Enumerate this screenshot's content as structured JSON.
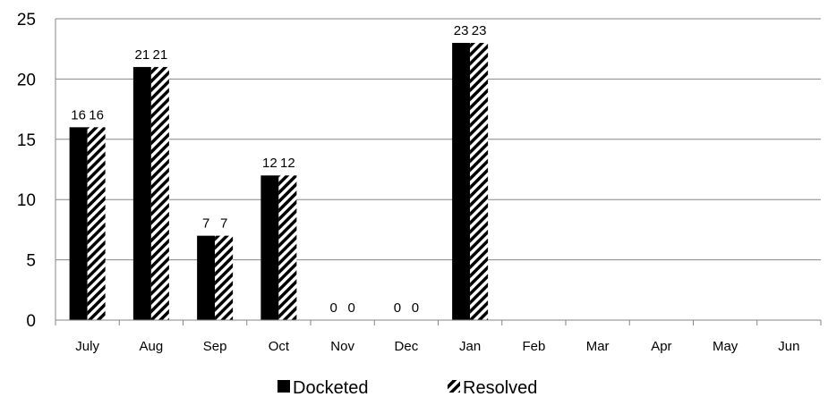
{
  "chart_data": {
    "type": "bar",
    "title": "",
    "xlabel": "",
    "ylabel": "",
    "categories": [
      "July",
      "Aug",
      "Sep",
      "Oct",
      "Nov",
      "Dec",
      "Jan",
      "Feb",
      "Mar",
      "Apr",
      "May",
      "Jun"
    ],
    "series": [
      {
        "name": "Docketed",
        "values": [
          16,
          21,
          7,
          12,
          0,
          0,
          23,
          null,
          null,
          null,
          null,
          null
        ],
        "color": "#000000",
        "pattern": "solid"
      },
      {
        "name": "Resolved",
        "values": [
          16,
          21,
          7,
          12,
          0,
          0,
          23,
          null,
          null,
          null,
          null,
          null
        ],
        "color": "#000000",
        "pattern": "diagonal-stripes"
      }
    ],
    "ylim": [
      0,
      25
    ],
    "yticks": [
      0,
      5,
      10,
      15,
      20,
      25
    ],
    "grid": true,
    "legend_position": "bottom"
  }
}
